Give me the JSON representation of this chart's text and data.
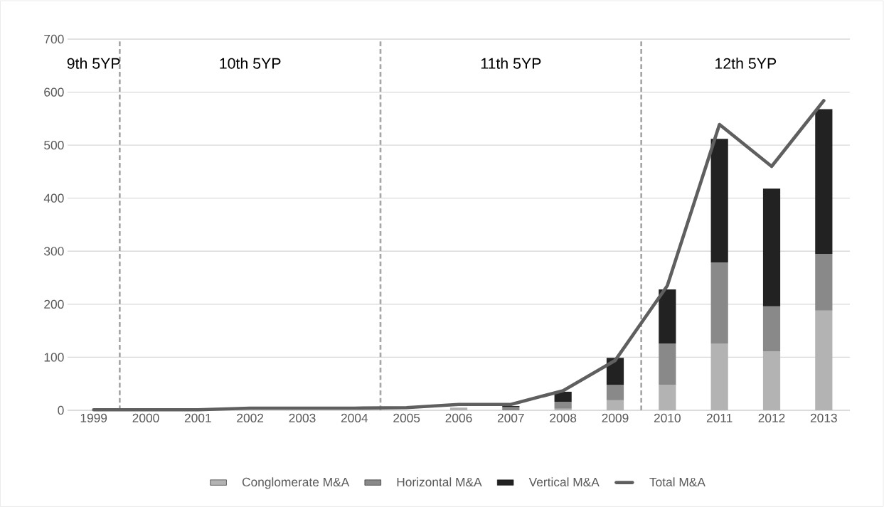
{
  "chart_data": {
    "type": "bar",
    "stacked": true,
    "categories": [
      "1999",
      "2000",
      "2001",
      "2002",
      "2003",
      "2004",
      "2005",
      "2006",
      "2007",
      "2008",
      "2009",
      "2010",
      "2011",
      "2012",
      "2013"
    ],
    "series": [
      {
        "name": "Conglomerate M&A",
        "color": "#b3b3b3",
        "values": [
          null,
          null,
          null,
          null,
          null,
          null,
          null,
          5,
          null,
          3,
          19,
          48,
          126,
          111,
          188
        ]
      },
      {
        "name": "Horizontal M&A",
        "color": "#898989",
        "values": [
          null,
          null,
          null,
          null,
          null,
          null,
          null,
          null,
          6,
          13,
          29,
          78,
          153,
          85,
          107
        ]
      },
      {
        "name": "Vertical M&A",
        "color": "#222222",
        "values": [
          null,
          null,
          null,
          null,
          null,
          null,
          null,
          null,
          2,
          19,
          51,
          102,
          233,
          222,
          273
        ]
      },
      {
        "name": "Total M&A",
        "type": "line",
        "color": "#5f5f5f",
        "values": [
          1,
          1,
          1,
          4,
          4,
          4,
          5,
          11,
          11,
          37,
          94,
          235,
          539,
          460,
          584
        ]
      }
    ],
    "ylim": [
      0,
      700
    ],
    "yticks": [
      0,
      100,
      200,
      300,
      400,
      500,
      600,
      700
    ],
    "grid": "y",
    "legend": "bottom",
    "annotations": [
      "9th 5YP",
      "10th 5YP",
      "11th 5YP",
      "12th 5YP"
    ]
  }
}
